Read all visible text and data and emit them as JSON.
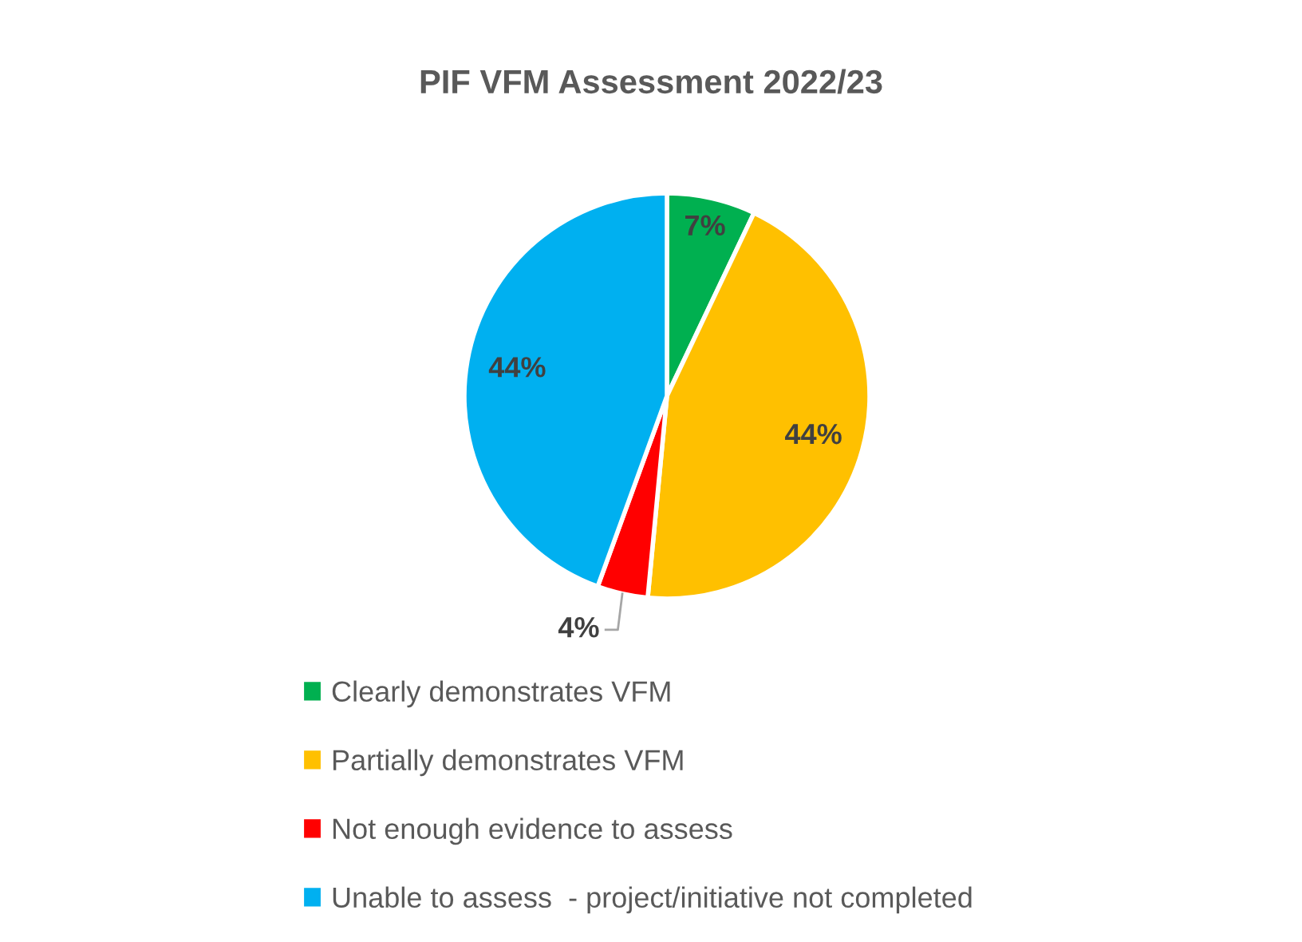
{
  "chart_data": {
    "type": "pie",
    "title": "PIF VFM Assessment 2022/23",
    "categories": [
      "Clearly demonstrates VFM",
      "Partially demonstrates VFM",
      "Not enough evidence to assess",
      "Unable to assess  - project/initiative not completed"
    ],
    "values": [
      7,
      44,
      4,
      44
    ],
    "colors": [
      "#00b050",
      "#ffc000",
      "#ff0000",
      "#00b0f0"
    ],
    "value_labels": [
      "7%",
      "44%",
      "4%",
      "44%"
    ],
    "legend": "bottom"
  }
}
